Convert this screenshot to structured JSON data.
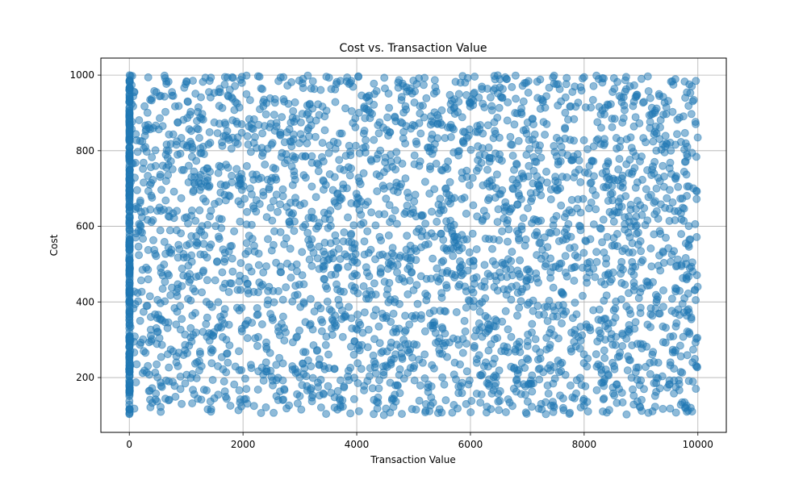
{
  "chart_data": {
    "type": "scatter",
    "title": "Cost vs. Transaction Value",
    "xlabel": "Transaction Value",
    "ylabel": "Cost",
    "xlim": [
      -500,
      10500
    ],
    "ylim": [
      55,
      1045
    ],
    "xticks": [
      0,
      2000,
      4000,
      6000,
      8000,
      10000
    ],
    "yticks": [
      200,
      400,
      600,
      800,
      1000
    ],
    "xtick_labels": [
      "0",
      "2000",
      "4000",
      "6000",
      "8000",
      "10000"
    ],
    "ytick_labels": [
      "200",
      "400",
      "600",
      "800",
      "1000"
    ],
    "grid": true,
    "color": "#1f77b4",
    "alpha": 0.5,
    "series": [
      {
        "description_of_distribution": "dense vertical column of points at x≈0 spanning y 100–1000, plus roughly uniform random scatter across x 0–10000 and y 100–1000",
        "x_zero_cluster": {
          "x": 0,
          "y_range": [
            100,
            1000
          ],
          "count": 300
        },
        "uniform_cloud": {
          "x_range": [
            0,
            10000
          ],
          "y_range": [
            100,
            1000
          ],
          "count": 3000
        }
      }
    ]
  }
}
